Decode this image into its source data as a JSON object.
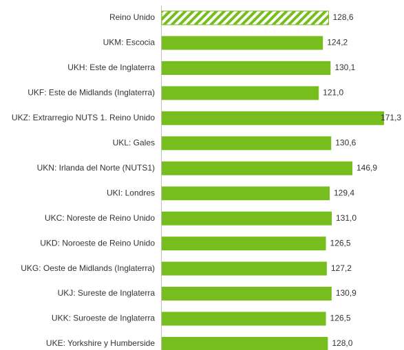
{
  "chart_data": {
    "type": "bar",
    "orientation": "horizontal",
    "categories": [
      "Reino Unido",
      "UKM: Escocia",
      "UKH: Este de Inglaterra",
      "UKF: Este de Midlands (Inglaterra)",
      "UKZ: Extrarregio NUTS 1. Reino Unido",
      "UKL: Gales",
      "UKN: Irlanda del Norte (NUTS1)",
      "UKI: Londres",
      "UKC: Noreste de Reino Unido",
      "UKD: Noroeste de Reino Unido",
      "UKG: Oeste de Midlands (Inglaterra)",
      "UKJ: Sureste de Inglaterra",
      "UKK: Suroeste de Inglaterra",
      "UKE: Yorkshire y Humberside"
    ],
    "values": [
      128.6,
      124.2,
      130.1,
      121.0,
      171.3,
      130.6,
      146.9,
      129.4,
      131.0,
      126.5,
      127.2,
      130.9,
      126.5,
      128.0
    ],
    "value_labels": [
      "128,6",
      "124,2",
      "130,1",
      "121,0",
      "171,3",
      "130,6",
      "146,9",
      "129,4",
      "131,0",
      "126,5",
      "127,2",
      "130,9",
      "126,5",
      "128,0"
    ],
    "color": "#76bd1d",
    "highlight": 0
  }
}
